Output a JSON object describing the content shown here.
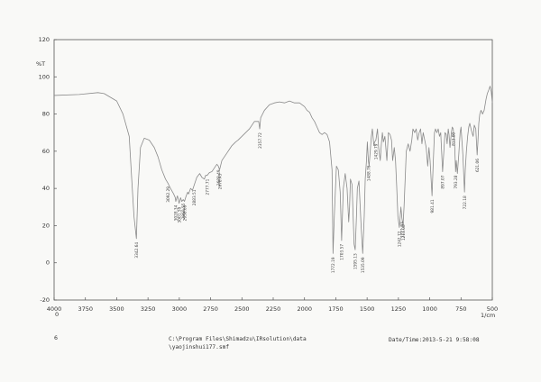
{
  "chart_data": {
    "type": "line",
    "ylabel": "%T",
    "xlabel": "1/cm",
    "xlim": [
      4000,
      500
    ],
    "ylim": [
      -20,
      120
    ],
    "x_ticks": [
      4000,
      3750,
      3500,
      3250,
      3000,
      2750,
      2500,
      2250,
      2000,
      1750,
      1500,
      1250,
      1000,
      750,
      500
    ],
    "y_ticks": [
      120,
      100,
      80,
      60,
      40,
      20,
      0,
      -20
    ],
    "x_ticks_text": [
      "4000",
      "3750",
      "3500",
      "3250",
      "3000",
      "2750",
      "2500",
      "2250",
      "2000",
      "1750",
      "1500",
      "1250",
      "1000",
      "750",
      "500"
    ],
    "y_ticks_text": [
      "120",
      "100",
      "80",
      "60",
      "40",
      "20",
      "0",
      "-20"
    ],
    "x_exponent": "0",
    "grid": false,
    "series": [
      {
        "color": "#8a8a8a",
        "points": [
          [
            4000,
            90
          ],
          [
            3800,
            90.5
          ],
          [
            3650,
            91.5
          ],
          [
            3600,
            91
          ],
          [
            3550,
            89
          ],
          [
            3500,
            87
          ],
          [
            3450,
            80
          ],
          [
            3400,
            68
          ],
          [
            3380,
            45
          ],
          [
            3362,
            25
          ],
          [
            3342.64,
            13
          ],
          [
            3330,
            40
          ],
          [
            3310,
            62
          ],
          [
            3280,
            67
          ],
          [
            3240,
            66
          ],
          [
            3200,
            62
          ],
          [
            3170,
            57
          ],
          [
            3140,
            50
          ],
          [
            3110,
            45
          ],
          [
            3092.29,
            43
          ],
          [
            3070,
            40
          ],
          [
            3045,
            37
          ],
          [
            3032,
            35
          ],
          [
            3028.34,
            33
          ],
          [
            3015,
            36
          ],
          [
            3008,
            34
          ],
          [
            3001.59,
            32
          ],
          [
            2990,
            35
          ],
          [
            2980,
            33
          ],
          [
            2968.55,
            34
          ],
          [
            2958.69,
            33
          ],
          [
            2945,
            36
          ],
          [
            2933,
            38
          ],
          [
            2926,
            37
          ],
          [
            2910,
            40
          ],
          [
            2895,
            39
          ],
          [
            2880,
            42
          ],
          [
            2860,
            46
          ],
          [
            2837,
            48
          ],
          [
            2820,
            46
          ],
          [
            2800,
            45
          ],
          [
            2790,
            47
          ],
          [
            2777.71,
            47
          ],
          [
            2760,
            48.5
          ],
          [
            2740,
            49
          ],
          [
            2720,
            51
          ],
          [
            2700,
            53
          ],
          [
            2688.49,
            52
          ],
          [
            2678.45,
            50
          ],
          [
            2660,
            55
          ],
          [
            2620,
            59
          ],
          [
            2580,
            63
          ],
          [
            2550,
            65
          ],
          [
            2530,
            66
          ],
          [
            2500,
            68
          ],
          [
            2470,
            70
          ],
          [
            2440,
            72
          ],
          [
            2400,
            76
          ],
          [
            2366,
            76
          ],
          [
            2357.72,
            72
          ],
          [
            2350,
            78
          ],
          [
            2320,
            82
          ],
          [
            2280,
            85
          ],
          [
            2240,
            86
          ],
          [
            2200,
            86.5
          ],
          [
            2160,
            86
          ],
          [
            2120,
            87
          ],
          [
            2080,
            86
          ],
          [
            2040,
            86
          ],
          [
            2000,
            84
          ],
          [
            1980,
            82
          ],
          [
            1960,
            81
          ],
          [
            1940,
            78
          ],
          [
            1920,
            76
          ],
          [
            1900,
            73
          ],
          [
            1880,
            70
          ],
          [
            1860,
            69
          ],
          [
            1840,
            70
          ],
          [
            1820,
            69
          ],
          [
            1800,
            65
          ],
          [
            1780,
            50
          ],
          [
            1772.19,
            5
          ],
          [
            1762,
            25
          ],
          [
            1745,
            52
          ],
          [
            1730,
            50
          ],
          [
            1715,
            38
          ],
          [
            1703.57,
            12
          ],
          [
            1690,
            40
          ],
          [
            1675,
            48
          ],
          [
            1660,
            40
          ],
          [
            1647,
            22
          ],
          [
            1640,
            30
          ],
          [
            1633,
            45
          ],
          [
            1620,
            42
          ],
          [
            1604,
            10
          ],
          [
            1595.13,
            7
          ],
          [
            1585,
            25
          ],
          [
            1578,
            40
          ],
          [
            1565,
            44
          ],
          [
            1548,
            20
          ],
          [
            1535.09,
            5
          ],
          [
            1523,
            25
          ],
          [
            1515,
            45
          ],
          [
            1505,
            55
          ],
          [
            1498,
            65
          ],
          [
            1490,
            55
          ],
          [
            1484,
            52
          ],
          [
            1475,
            60
          ],
          [
            1466,
            68
          ],
          [
            1458,
            72
          ],
          [
            1446,
            63
          ],
          [
            1440,
            65
          ],
          [
            1429.79,
            66
          ],
          [
            1417,
            72
          ],
          [
            1408,
            62
          ],
          [
            1395,
            55
          ],
          [
            1386,
            64
          ],
          [
            1378,
            70
          ],
          [
            1370,
            65
          ],
          [
            1358,
            68
          ],
          [
            1342,
            55
          ],
          [
            1330,
            70
          ],
          [
            1317,
            69
          ],
          [
            1305,
            66
          ],
          [
            1296,
            55
          ],
          [
            1283,
            62
          ],
          [
            1273,
            55
          ],
          [
            1263,
            40
          ],
          [
            1254,
            25
          ],
          [
            1242.72,
            19
          ],
          [
            1230,
            30
          ],
          [
            1221.93,
            24
          ],
          [
            1213,
            20
          ],
          [
            1205,
            30
          ],
          [
            1196,
            45
          ],
          [
            1187,
            60
          ],
          [
            1172,
            64
          ],
          [
            1157,
            60
          ],
          [
            1143,
            66
          ],
          [
            1134,
            72
          ],
          [
            1120,
            70
          ],
          [
            1108,
            72
          ],
          [
            1096,
            66
          ],
          [
            1084,
            70
          ],
          [
            1073,
            72
          ],
          [
            1062,
            64
          ],
          [
            1052,
            70
          ],
          [
            1040,
            66
          ],
          [
            1028,
            62
          ],
          [
            1016,
            52
          ],
          [
            1006,
            62
          ],
          [
            997,
            55
          ],
          [
            981.41,
            36
          ],
          [
            971,
            55
          ],
          [
            962,
            70
          ],
          [
            954,
            72
          ],
          [
            943,
            70
          ],
          [
            932,
            72
          ],
          [
            922,
            68
          ],
          [
            912,
            70
          ],
          [
            897.07,
            49
          ],
          [
            887,
            60
          ],
          [
            878,
            70
          ],
          [
            868,
            69
          ],
          [
            861,
            64
          ],
          [
            852,
            72
          ],
          [
            846,
            69
          ],
          [
            838,
            62
          ],
          [
            827,
            70
          ],
          [
            820,
            73
          ],
          [
            812,
            72
          ],
          [
            800,
            62
          ],
          [
            793.28,
            49
          ],
          [
            788,
            55
          ],
          [
            779,
            48
          ],
          [
            768,
            58
          ],
          [
            757,
            70
          ],
          [
            750,
            73
          ],
          [
            742,
            65
          ],
          [
            735,
            58
          ],
          [
            722.18,
            38
          ],
          [
            716,
            50
          ],
          [
            707,
            60
          ],
          [
            697,
            68
          ],
          [
            688,
            73
          ],
          [
            680,
            75
          ],
          [
            670,
            72
          ],
          [
            662,
            70
          ],
          [
            653,
            68
          ],
          [
            644,
            74
          ],
          [
            632,
            72
          ],
          [
            621.06,
            58
          ],
          [
            615,
            65
          ],
          [
            608,
            75
          ],
          [
            600,
            80
          ],
          [
            590,
            82
          ],
          [
            578,
            80
          ],
          [
            565,
            82
          ],
          [
            550,
            88
          ],
          [
            540,
            91
          ],
          [
            528,
            93
          ],
          [
            518,
            95
          ],
          [
            508,
            92
          ],
          [
            500,
            86
          ]
        ]
      }
    ],
    "peak_labels": [
      {
        "wavenumber": 3342.64,
        "text": "3342.64"
      },
      {
        "wavenumber": 3092.29,
        "text": "3092.29"
      },
      {
        "wavenumber": 3028.34,
        "text": "3028.34"
      },
      {
        "wavenumber": 3001.59,
        "text": "3001.59"
      },
      {
        "wavenumber": 2968.55,
        "text": "2968.55"
      },
      {
        "wavenumber": 2958.69,
        "text": "2958.69"
      },
      {
        "wavenumber": 2883.51,
        "text": "2883.51"
      },
      {
        "wavenumber": 2777.71,
        "text": "2777.71"
      },
      {
        "wavenumber": 2688.49,
        "text": "2688.49"
      },
      {
        "wavenumber": 2678.45,
        "text": "2678.45"
      },
      {
        "wavenumber": 2357.72,
        "text": "2357.72"
      },
      {
        "wavenumber": 1772.19,
        "text": "1772.19"
      },
      {
        "wavenumber": 1703.57,
        "text": "1703.57"
      },
      {
        "wavenumber": 1595.13,
        "text": "1595.13"
      },
      {
        "wavenumber": 1535.09,
        "text": "1535.09"
      },
      {
        "wavenumber": 1488.76,
        "text": "1488.76"
      },
      {
        "wavenumber": 1429.79,
        "text": "1429.79"
      },
      {
        "wavenumber": 1242.72,
        "text": "1242.72"
      },
      {
        "wavenumber": 1221.93,
        "text": "1221.93"
      },
      {
        "wavenumber": 1211.0,
        "text": "1211.00"
      },
      {
        "wavenumber": 981.41,
        "text": "981.41"
      },
      {
        "wavenumber": 897.07,
        "text": "897.07"
      },
      {
        "wavenumber": 813.0,
        "text": "813.00"
      },
      {
        "wavenumber": 793.28,
        "text": "793.28"
      },
      {
        "wavenumber": 722.18,
        "text": "722.18"
      },
      {
        "wavenumber": 621.06,
        "text": "621.06"
      }
    ]
  },
  "footer": {
    "page_number": "6",
    "file_path_line1": "C:\\Program Files\\Shimadzu\\IRsolution\\data",
    "file_path_line2": "\\yaojinshui177.smf",
    "datetime": "Date/Time:2013-5-21 9:58:08"
  }
}
